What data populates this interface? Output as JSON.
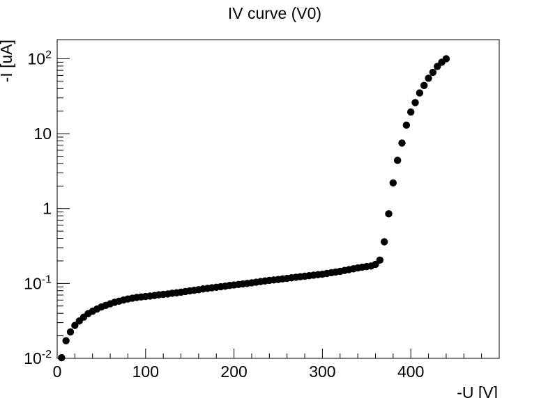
{
  "chart_data": {
    "type": "scatter",
    "title": "IV curve (V0)",
    "xlabel": "-U [V]",
    "ylabel": "-I [uA]",
    "xlim": [
      0,
      500
    ],
    "ylim": [
      0.01,
      180
    ],
    "yscale": "log",
    "grid": false,
    "x_ticks": [
      0,
      100,
      200,
      300,
      400
    ],
    "x_tick_labels": [
      "0",
      "100",
      "200",
      "300",
      "400"
    ],
    "y_ticks": [
      0.01,
      0.1,
      1,
      10,
      100
    ],
    "y_tick_labels": [
      {
        "base": "10",
        "exp": "-2"
      },
      {
        "base": "10",
        "exp": "-1"
      },
      {
        "base": "1",
        "exp": ""
      },
      {
        "base": "10",
        "exp": ""
      },
      {
        "base": "10",
        "exp": "2"
      }
    ],
    "marker_color": "#000000",
    "series": [
      {
        "x": [
          5,
          10,
          15,
          20,
          25,
          30,
          35,
          40,
          45,
          50,
          55,
          60,
          65,
          70,
          75,
          80,
          85,
          90,
          95,
          100,
          105,
          110,
          115,
          120,
          125,
          130,
          135,
          140,
          145,
          150,
          155,
          160,
          165,
          170,
          175,
          180,
          185,
          190,
          195,
          200,
          205,
          210,
          215,
          220,
          225,
          230,
          235,
          240,
          245,
          250,
          255,
          260,
          265,
          270,
          275,
          280,
          285,
          290,
          295,
          300,
          305,
          310,
          315,
          320,
          325,
          330,
          335,
          340,
          345,
          350,
          355,
          360,
          365,
          370,
          375,
          380,
          385,
          390,
          395,
          400,
          405,
          410,
          415,
          420,
          425,
          430,
          435,
          440
        ],
        "y": [
          0.0102,
          0.0172,
          0.0225,
          0.0275,
          0.0315,
          0.0355,
          0.0395,
          0.0425,
          0.0455,
          0.0485,
          0.051,
          0.0535,
          0.056,
          0.058,
          0.06,
          0.062,
          0.0635,
          0.065,
          0.066,
          0.067,
          0.068,
          0.069,
          0.0705,
          0.0715,
          0.0725,
          0.074,
          0.075,
          0.0765,
          0.078,
          0.0795,
          0.081,
          0.0825,
          0.0845,
          0.086,
          0.0875,
          0.089,
          0.0905,
          0.092,
          0.094,
          0.0955,
          0.097,
          0.0985,
          0.1,
          0.102,
          0.104,
          0.106,
          0.108,
          0.11,
          0.1115,
          0.113,
          0.115,
          0.117,
          0.119,
          0.121,
          0.123,
          0.125,
          0.127,
          0.129,
          0.131,
          0.133,
          0.136,
          0.139,
          0.142,
          0.145,
          0.149,
          0.153,
          0.157,
          0.161,
          0.165,
          0.168,
          0.171,
          0.18,
          0.205,
          0.36,
          0.85,
          2.2,
          4.4,
          7.5,
          13,
          19.5,
          26,
          35,
          44,
          55,
          66,
          79,
          90,
          100
        ]
      }
    ]
  }
}
